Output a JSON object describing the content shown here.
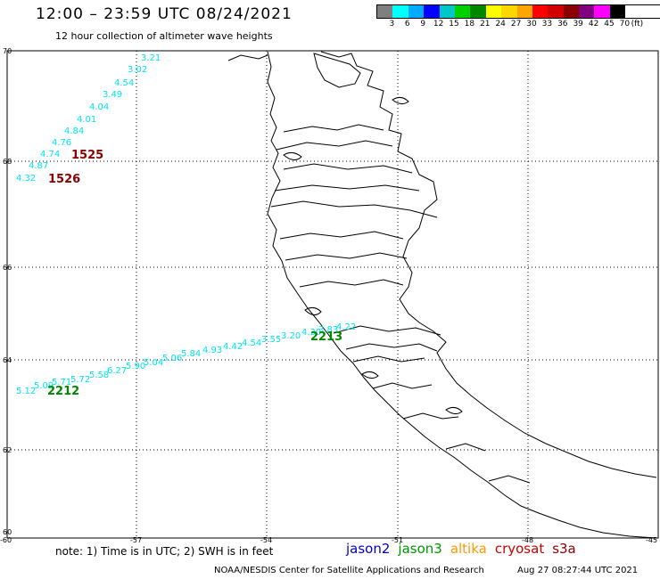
{
  "header": {
    "title": "12:00 – 23:59 UTC 08/24/2021",
    "subtitle": "12 hour collection of altimeter wave heights"
  },
  "colorbar": {
    "swatches": [
      "#7f7f7f",
      "#00ffff",
      "#00aaff",
      "#0000ff",
      "#00c8c8",
      "#00d000",
      "#008800",
      "#ffff00",
      "#ffd700",
      "#ffa500",
      "#ff0000",
      "#d00000",
      "#8b0000",
      "#800080",
      "#ff00ff",
      "#000000"
    ],
    "labels": [
      "3",
      "6",
      "9",
      "12",
      "15",
      "18",
      "21",
      "24",
      "27",
      "30",
      "33",
      "36",
      "39",
      "42",
      "45",
      "70",
      "(ft)"
    ]
  },
  "axes": {
    "lat_labels": [
      "70",
      "68",
      "66",
      "64",
      "62",
      "60"
    ],
    "lon_labels": [
      "-60",
      "-57",
      "-54",
      "-51",
      "-48",
      "-45"
    ]
  },
  "swh_labels": {
    "pass1525": [
      "3.21",
      "3.02",
      "4.54",
      "3.49",
      "4.04",
      "4.01",
      "4.84",
      "4.76",
      "4.74",
      "4.87",
      "4.32"
    ],
    "pass2212": [
      "5.12",
      "5.09",
      "5.71",
      "5.72",
      "5.58",
      "6.27",
      "5.90",
      "5.04",
      "5.06",
      "5.84",
      "4.93",
      "4.42",
      "4.54",
      "3.55",
      "3.20",
      "4.30",
      "3.83",
      "4.22"
    ]
  },
  "track_labels": {
    "t1525": "1525",
    "t1526": "1526",
    "t2212": "2212",
    "t2213": "2213"
  },
  "colors": {
    "swh_text": "#00e5ee",
    "cryosat_track": "#8b0000",
    "jason3_track": "#008800"
  },
  "footer": {
    "note": "note:  1) Time is in UTC;  2) SWH is in feet",
    "credit": "NOAA/NESDIS Center for Satellite Applications and Research",
    "timestamp": "Aug 27 08:27:44 UTC 2021"
  },
  "legend": {
    "items": [
      {
        "label": "jason2",
        "color": "#0000cc"
      },
      {
        "label": "jason3",
        "color": "#009900"
      },
      {
        "label": "altika",
        "color": "#ff9900"
      },
      {
        "label": "cryosat",
        "color": "#cc0000"
      },
      {
        "label": "s3a",
        "color": "#8b0000"
      }
    ]
  }
}
